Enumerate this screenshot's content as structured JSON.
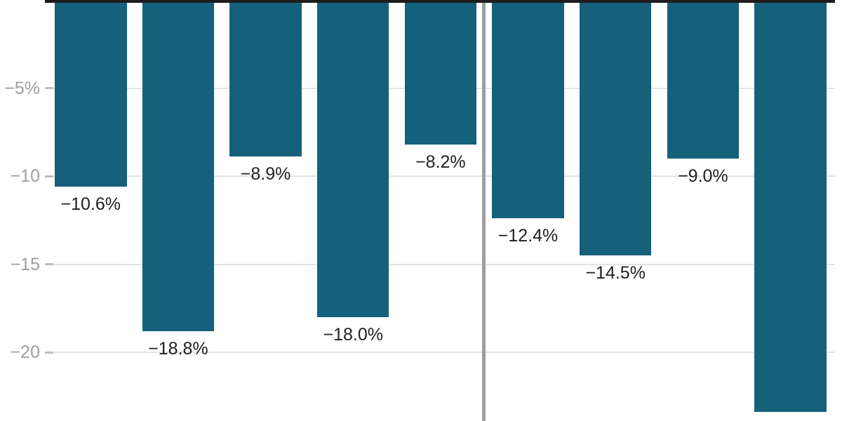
{
  "chart_data": {
    "type": "bar",
    "orientation": "vertical",
    "title": "",
    "xlabel": "",
    "ylabel": "",
    "unit": "%",
    "values": [
      -10.6,
      -18.8,
      -8.9,
      -18.0,
      -8.2,
      -12.4,
      -14.5,
      -9.0,
      -23.4
    ],
    "bar_labels": [
      "−10.6%",
      "−18.8%",
      "−8.9%",
      "−18.0%",
      "−8.2%",
      "−12.4%",
      "−14.5%",
      "−9.0%",
      null
    ],
    "y_axis": {
      "ticks": [
        {
          "value": -5,
          "label": "−5%"
        },
        {
          "value": -10,
          "label": "−10"
        },
        {
          "value": -15,
          "label": "−15"
        },
        {
          "value": -20,
          "label": "−20"
        }
      ]
    },
    "ylim": [
      -23.9,
      0
    ],
    "grid": true,
    "legend": false,
    "divider_after_index": 4,
    "groups": [
      {
        "bar_count": 5
      },
      {
        "bar_count": 4
      }
    ],
    "colors": {
      "bar": "#15607a",
      "zero_axis": "#1c1c1c",
      "gridline": "#e4e4e4",
      "tick_mark": "#bdbdbd",
      "tick_label": "#9e9e9e",
      "value_label": "#1f1f1f",
      "divider": "#9e9e9e",
      "background": "#ffffff"
    }
  }
}
